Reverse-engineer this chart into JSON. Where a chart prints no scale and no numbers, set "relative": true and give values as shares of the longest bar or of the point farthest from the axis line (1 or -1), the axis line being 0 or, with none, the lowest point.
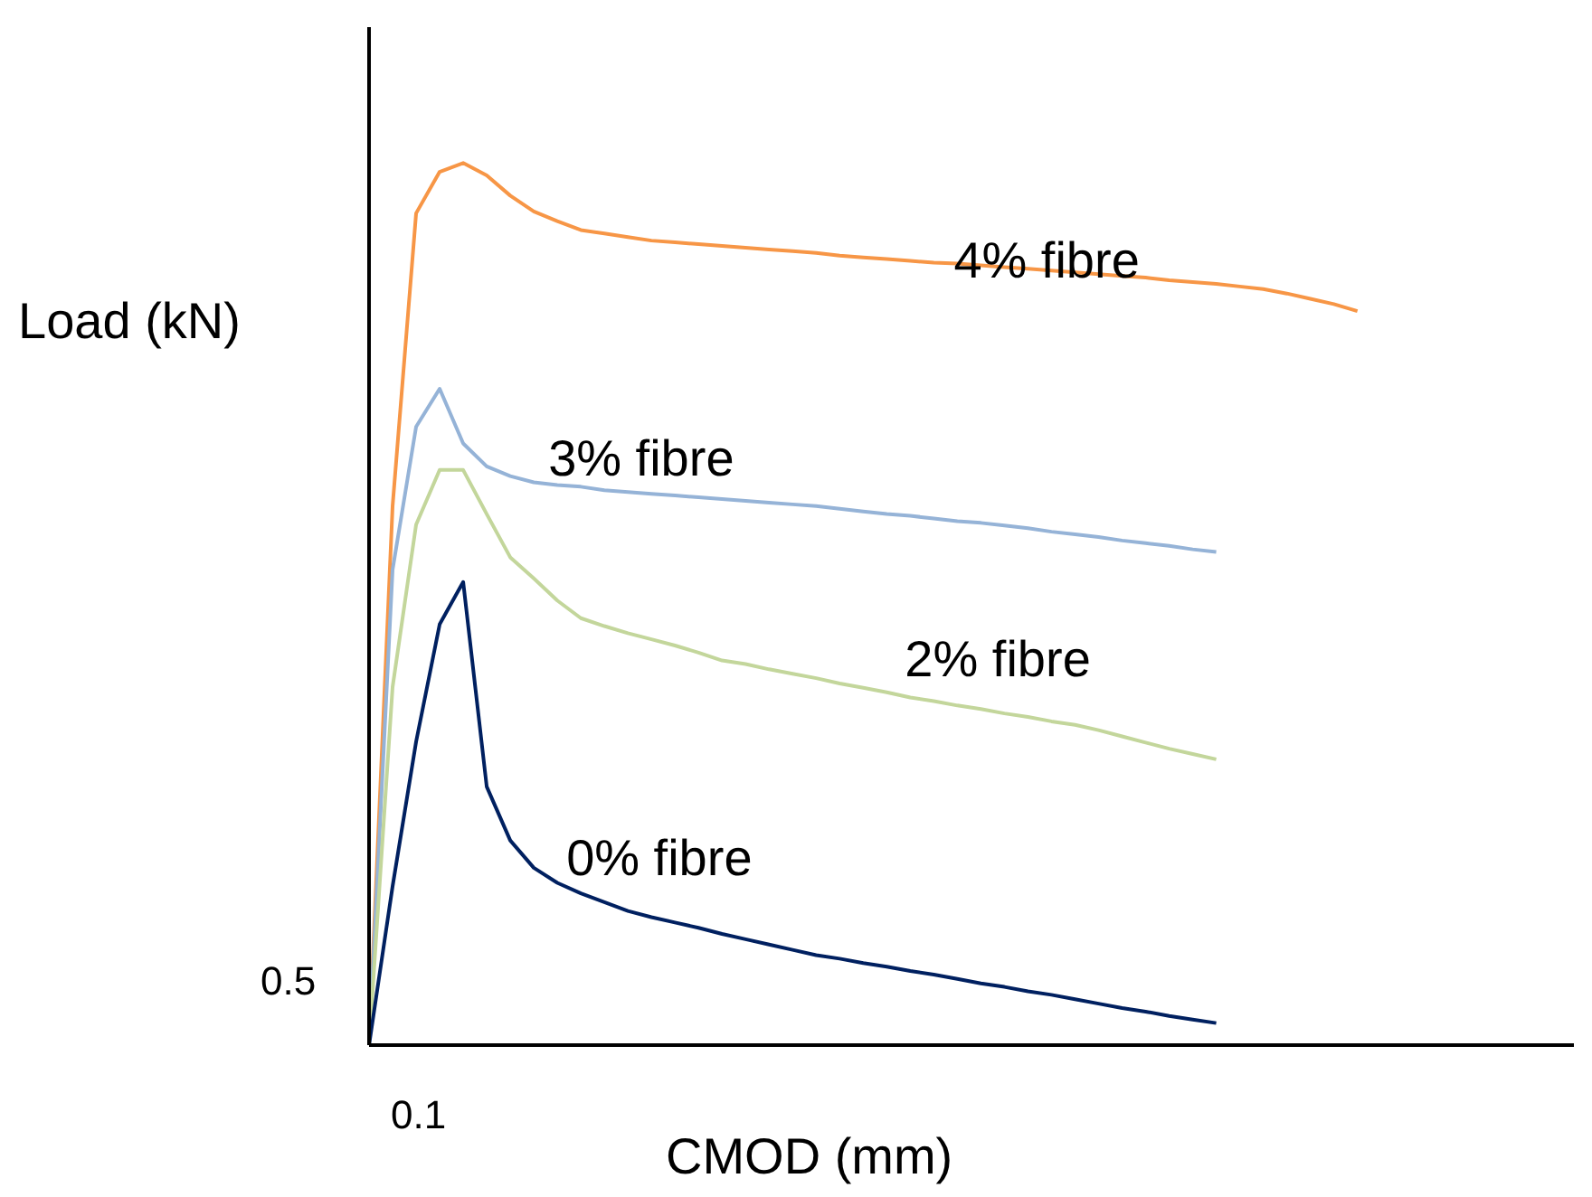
{
  "chart_data": {
    "type": "line",
    "xlabel": "CMOD (mm)",
    "ylabel": "Load (kN)",
    "relative": true,
    "annotations": [
      "0.5",
      "0.1"
    ],
    "categories": [
      null,
      null,
      null,
      null,
      null,
      null,
      null,
      null,
      null,
      null,
      null,
      null,
      null,
      null,
      null,
      null,
      null,
      null,
      null,
      null,
      null,
      null,
      null,
      null,
      null,
      null,
      null,
      null,
      null,
      null,
      null,
      null,
      null,
      null,
      null,
      null,
      null,
      null,
      null,
      null,
      null,
      null,
      null
    ],
    "series": [
      {
        "name": "4% fibre",
        "color": "#f79646",
        "values": [
          0,
          0.611,
          0.943,
          0.99,
          1.0,
          0.986,
          0.963,
          0.945,
          0.934,
          0.924,
          0.92,
          0.916,
          0.912,
          0.91,
          0.908,
          0.906,
          0.904,
          0.902,
          0.9,
          0.898,
          0.895,
          0.893,
          0.891,
          0.889,
          0.887,
          0.886,
          0.884,
          0.882,
          0.88,
          0.878,
          0.876,
          0.874,
          0.872,
          0.87,
          0.867,
          0.865,
          0.863,
          0.86,
          0.857,
          0.852,
          0.846,
          0.84,
          0.832
        ]
      },
      {
        "name": "3% fibre",
        "color": "#95b3d7",
        "values": [
          0,
          0.539,
          0.701,
          0.744,
          0.682,
          0.656,
          0.645,
          0.638,
          0.635,
          0.633,
          0.629,
          0.627,
          0.625,
          0.623,
          0.621,
          0.619,
          0.617,
          0.615,
          0.613,
          0.611,
          0.608,
          0.605,
          0.602,
          0.6,
          0.597,
          0.594,
          0.592,
          0.589,
          0.586,
          0.582,
          0.579,
          0.576,
          0.572,
          0.569,
          0.566,
          0.562,
          0.559,
          null,
          null,
          null,
          null,
          null,
          null
        ]
      },
      {
        "name": "2% fibre",
        "color": "#c3d69b",
        "values": [
          0,
          0.406,
          0.59,
          0.652,
          0.652,
          0.602,
          0.553,
          0.529,
          0.504,
          0.484,
          0.475,
          0.467,
          0.46,
          0.453,
          0.445,
          0.436,
          0.432,
          0.426,
          0.421,
          0.416,
          0.41,
          0.405,
          0.4,
          0.394,
          0.39,
          0.385,
          0.381,
          0.376,
          0.372,
          0.367,
          0.363,
          0.357,
          0.35,
          0.343,
          0.336,
          0.33,
          0.324,
          null,
          null,
          null,
          null,
          null,
          null
        ]
      },
      {
        "name": "0% fibre",
        "color": "#002060",
        "values": [
          0,
          0.18,
          0.344,
          0.477,
          0.525,
          0.293,
          0.232,
          0.201,
          0.184,
          0.172,
          0.162,
          0.152,
          0.145,
          0.139,
          0.133,
          0.126,
          0.12,
          0.114,
          0.108,
          0.102,
          0.098,
          0.093,
          0.089,
          0.084,
          0.08,
          0.075,
          0.07,
          0.066,
          0.061,
          0.057,
          0.052,
          0.047,
          0.042,
          0.038,
          0.033,
          0.029,
          0.025,
          null,
          null,
          null,
          null,
          null,
          null
        ]
      }
    ]
  }
}
